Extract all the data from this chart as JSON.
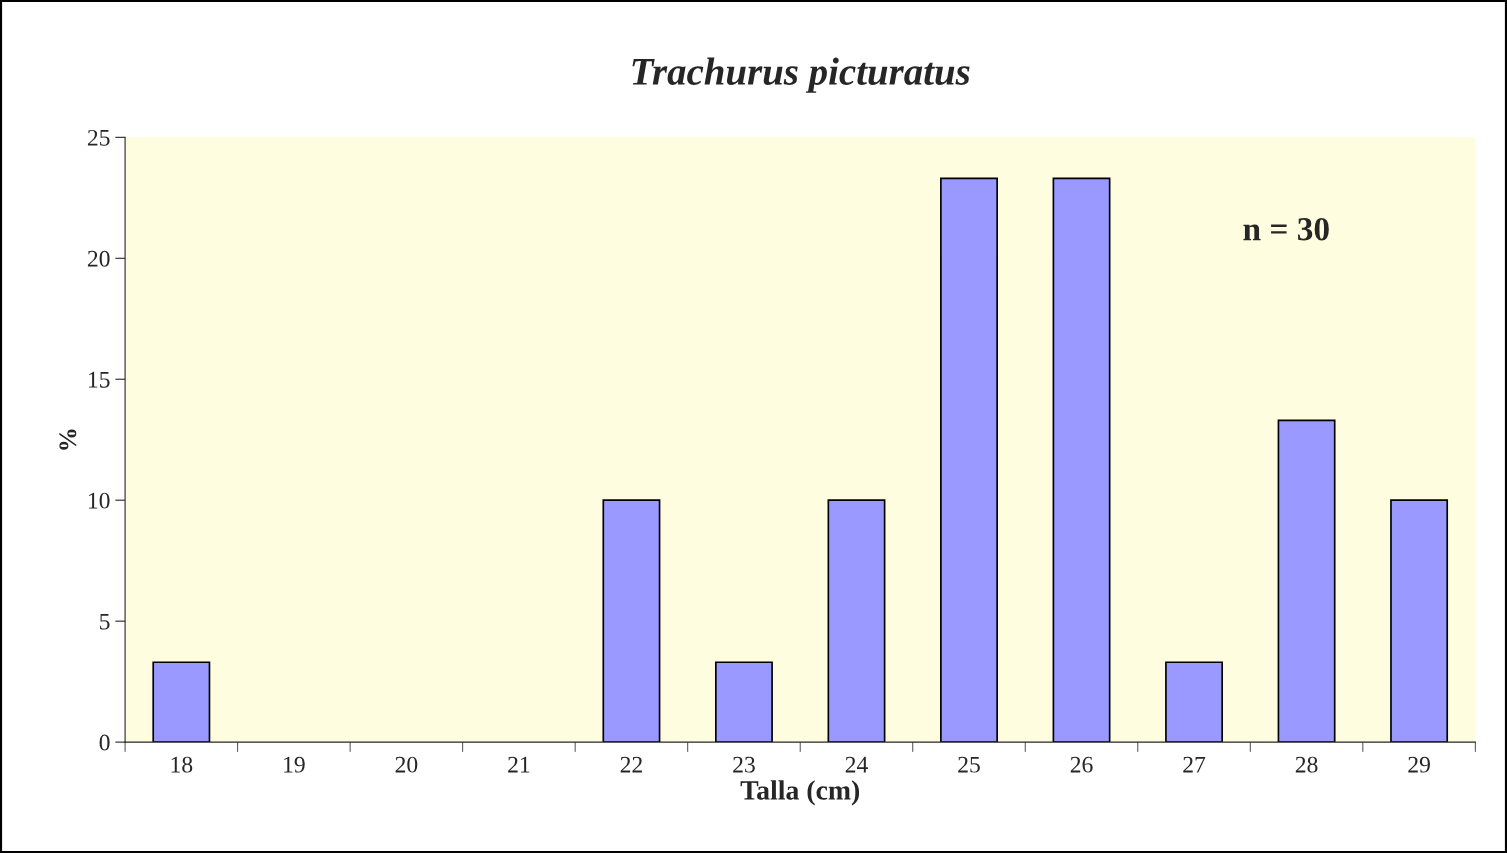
{
  "chart_data": {
    "type": "bar",
    "title": "Trachurus picturatus",
    "xlabel": "Talla (cm)",
    "ylabel": "%",
    "categories": [
      "18",
      "19",
      "20",
      "21",
      "22",
      "23",
      "24",
      "25",
      "26",
      "27",
      "28",
      "29"
    ],
    "values": [
      3.3,
      0,
      0,
      0,
      10,
      3.3,
      10,
      23.3,
      23.3,
      3.3,
      13.3,
      10
    ],
    "color": "#9999ff",
    "ylim": [
      0,
      25
    ],
    "yticks": [
      0,
      5,
      10,
      15,
      20,
      25
    ],
    "grid": false,
    "legend": false,
    "annotations": [
      "n = 30"
    ]
  }
}
